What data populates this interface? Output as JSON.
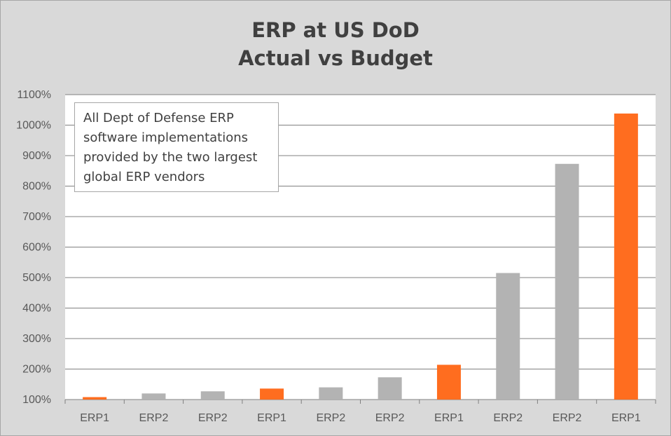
{
  "chart_data": {
    "type": "bar",
    "title": [
      "ERP at US DoD",
      "Actual vs Budget"
    ],
    "xlabel": "",
    "ylabel": "",
    "categories": [
      "ERP1",
      "ERP2",
      "ERP2",
      "ERP1",
      "ERP2",
      "ERP2",
      "ERP1",
      "ERP2",
      "ERP2",
      "ERP1"
    ],
    "values": [
      108,
      120,
      127,
      136,
      140,
      173,
      214,
      515,
      873,
      1038
    ],
    "unit": "%",
    "ylim": [
      100,
      1100
    ],
    "yticks": [
      "100%",
      "200%",
      "300%",
      "400%",
      "500%",
      "600%",
      "700%",
      "800%",
      "900%",
      "1000%",
      "1100%"
    ],
    "grid": true,
    "legend": "none",
    "annotation": "All Dept of Defense ERP software implementations provided by the two largest global ERP vendors",
    "colors": {
      "ERP1": "#ff6d1f",
      "ERP2": "#b3b3b3",
      "background": "#d9d9d9",
      "plot_background": "#ffffff",
      "gridline": "#808080"
    }
  }
}
